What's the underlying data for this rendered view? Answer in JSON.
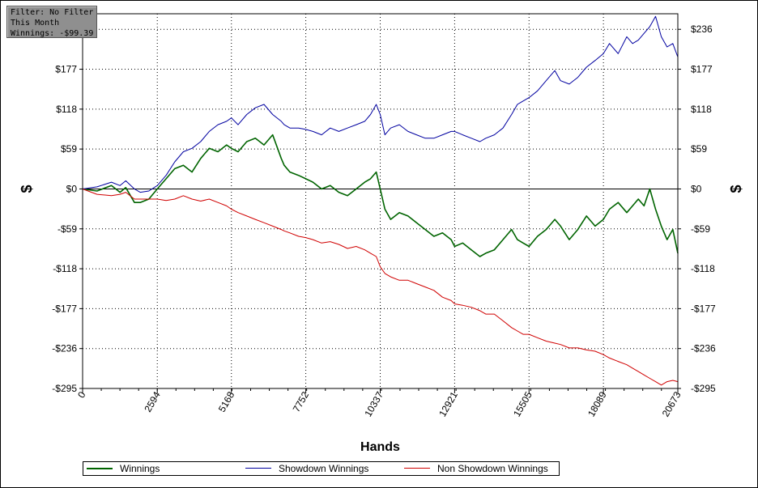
{
  "filter_box": {
    "line1": "Filter: No Filter",
    "line2": "This Month",
    "line3": "Winnings: -$99.39"
  },
  "chart_data": {
    "type": "line",
    "xlabel": "Hands",
    "ylabel": "$",
    "ylabel_right": "$",
    "xlim": [
      0,
      20673
    ],
    "ylim": [
      -295,
      259
    ],
    "x_ticks": [
      0,
      2594,
      5168,
      7752,
      10337,
      12921,
      15505,
      18089,
      20673
    ],
    "x_tick_labels": [
      "0",
      "2594",
      "5168",
      "7752",
      "10337",
      "12921",
      "15505",
      "18089",
      "20673"
    ],
    "y_ticks": [
      236,
      177,
      118,
      59,
      0,
      -59,
      -118,
      -177,
      -236,
      -295
    ],
    "y_tick_labels": [
      "$236",
      "$177",
      "$118",
      "$59",
      "$0",
      "-$59",
      "-$118",
      "-$177",
      "-$236",
      "-$295"
    ],
    "y_tick_labels_left": [
      "",
      "$177",
      "$118",
      "$59",
      "$0",
      "-$59",
      "-$118",
      "-$177",
      "-$236",
      "-$295"
    ],
    "grid": true,
    "zero_line": true,
    "legend_position": "bottom",
    "series": [
      {
        "name": "Winnings",
        "color": "#006400",
        "x": [
          0,
          500,
          1000,
          1300,
          1500,
          1800,
          2000,
          2300,
          2594,
          2900,
          3200,
          3500,
          3800,
          4100,
          4400,
          4700,
          5000,
          5168,
          5400,
          5700,
          6000,
          6300,
          6600,
          6900,
          7000,
          7200,
          7500,
          7752,
          8000,
          8300,
          8600,
          8900,
          9200,
          9500,
          9800,
          10000,
          10200,
          10337,
          10500,
          10700,
          11000,
          11300,
          11600,
          11900,
          12200,
          12500,
          12800,
          12921,
          13200,
          13500,
          13800,
          14000,
          14300,
          14600,
          14900,
          15100,
          15300,
          15505,
          15800,
          16100,
          16400,
          16600,
          16900,
          17200,
          17500,
          17800,
          18089,
          18300,
          18600,
          18900,
          19100,
          19300,
          19500,
          19700,
          19900,
          20100,
          20300,
          20500,
          20673
        ],
        "values": [
          0,
          -3,
          5,
          -5,
          2,
          -20,
          -20,
          -15,
          0,
          15,
          30,
          35,
          25,
          45,
          60,
          55,
          65,
          60,
          55,
          70,
          75,
          65,
          80,
          45,
          35,
          25,
          20,
          15,
          10,
          0,
          5,
          -5,
          -10,
          0,
          10,
          15,
          25,
          0,
          -30,
          -45,
          -35,
          -40,
          -50,
          -60,
          -70,
          -65,
          -75,
          -85,
          -80,
          -90,
          -100,
          -95,
          -90,
          -75,
          -60,
          -75,
          -80,
          -85,
          -70,
          -60,
          -45,
          -55,
          -75,
          -60,
          -40,
          -55,
          -45,
          -30,
          -20,
          -35,
          -25,
          -15,
          -25,
          0,
          -30,
          -55,
          -75,
          -60,
          -95
        ]
      },
      {
        "name": "Showdown Winnings",
        "color": "#0000a0",
        "x": [
          0,
          500,
          1000,
          1300,
          1500,
          1800,
          2000,
          2300,
          2594,
          2900,
          3200,
          3500,
          3800,
          4100,
          4400,
          4700,
          5000,
          5168,
          5400,
          5700,
          6000,
          6300,
          6600,
          6900,
          7000,
          7200,
          7500,
          7752,
          8000,
          8300,
          8600,
          8900,
          9200,
          9500,
          9800,
          10000,
          10200,
          10337,
          10500,
          10700,
          11000,
          11300,
          11600,
          11900,
          12200,
          12500,
          12800,
          12921,
          13200,
          13500,
          13800,
          14000,
          14300,
          14600,
          14900,
          15100,
          15300,
          15505,
          15800,
          16100,
          16400,
          16600,
          16900,
          17200,
          17500,
          17800,
          18089,
          18300,
          18600,
          18900,
          19100,
          19300,
          19500,
          19700,
          19900,
          20100,
          20300,
          20500,
          20673
        ],
        "values": [
          0,
          3,
          10,
          5,
          12,
          0,
          -5,
          -3,
          5,
          20,
          40,
          55,
          60,
          70,
          85,
          95,
          100,
          105,
          95,
          110,
          120,
          125,
          110,
          100,
          95,
          90,
          90,
          88,
          85,
          80,
          90,
          85,
          90,
          95,
          100,
          110,
          125,
          110,
          80,
          90,
          95,
          85,
          80,
          75,
          75,
          80,
          85,
          85,
          80,
          75,
          70,
          75,
          80,
          90,
          110,
          125,
          130,
          135,
          145,
          160,
          175,
          160,
          155,
          165,
          180,
          190,
          200,
          215,
          200,
          225,
          215,
          220,
          230,
          240,
          255,
          225,
          210,
          215,
          195
        ]
      },
      {
        "name": "Non Showdown Winnings",
        "color": "#d00000",
        "x": [
          0,
          500,
          1000,
          1300,
          1500,
          1800,
          2000,
          2300,
          2594,
          2900,
          3200,
          3500,
          3800,
          4100,
          4400,
          4700,
          5000,
          5168,
          5400,
          5700,
          6000,
          6300,
          6600,
          6900,
          7000,
          7200,
          7500,
          7752,
          8000,
          8300,
          8600,
          8900,
          9200,
          9500,
          9800,
          10000,
          10200,
          10337,
          10500,
          10700,
          11000,
          11300,
          11600,
          11900,
          12200,
          12500,
          12800,
          12921,
          13200,
          13500,
          13800,
          14000,
          14300,
          14600,
          14900,
          15100,
          15300,
          15505,
          15800,
          16100,
          16400,
          16600,
          16900,
          17200,
          17500,
          17800,
          18089,
          18300,
          18600,
          18900,
          19100,
          19300,
          19500,
          19700,
          19900,
          20100,
          20300,
          20500,
          20673
        ],
        "values": [
          0,
          -8,
          -10,
          -8,
          -5,
          -15,
          -15,
          -15,
          -15,
          -17,
          -15,
          -10,
          -15,
          -18,
          -15,
          -20,
          -25,
          -30,
          -35,
          -40,
          -45,
          -50,
          -55,
          -60,
          -62,
          -65,
          -70,
          -72,
          -75,
          -80,
          -78,
          -82,
          -88,
          -85,
          -90,
          -95,
          -100,
          -115,
          -125,
          -130,
          -135,
          -135,
          -140,
          -145,
          -150,
          -160,
          -165,
          -170,
          -172,
          -175,
          -180,
          -185,
          -185,
          -195,
          -205,
          -210,
          -215,
          -215,
          -220,
          -225,
          -228,
          -230,
          -235,
          -235,
          -238,
          -240,
          -245,
          -250,
          -255,
          -260,
          -265,
          -270,
          -275,
          -280,
          -285,
          -290,
          -285,
          -283,
          -285
        ]
      }
    ]
  }
}
